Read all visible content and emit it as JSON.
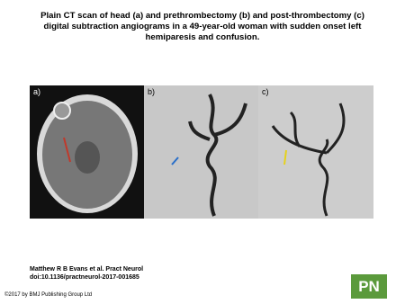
{
  "header": {
    "title": "Plain CT scan of head (a) and prethrombectomy (b) and post-thrombectomy (c) digital subtraction angiograms in a 49-year-old woman with sudden onset left hemiparesis and confusion."
  },
  "figure": {
    "panels": [
      {
        "label": "a)"
      },
      {
        "label": "b)"
      },
      {
        "label": "c)"
      }
    ]
  },
  "citation": {
    "authors": "Matthew R B Evans et al. Pract Neurol",
    "doi": "doi:10.1136/practneurol-2017-001685"
  },
  "footer": {
    "copyright": "©2017 by BMJ Publishing Group Ltd"
  },
  "logo": {
    "text": "PN"
  }
}
